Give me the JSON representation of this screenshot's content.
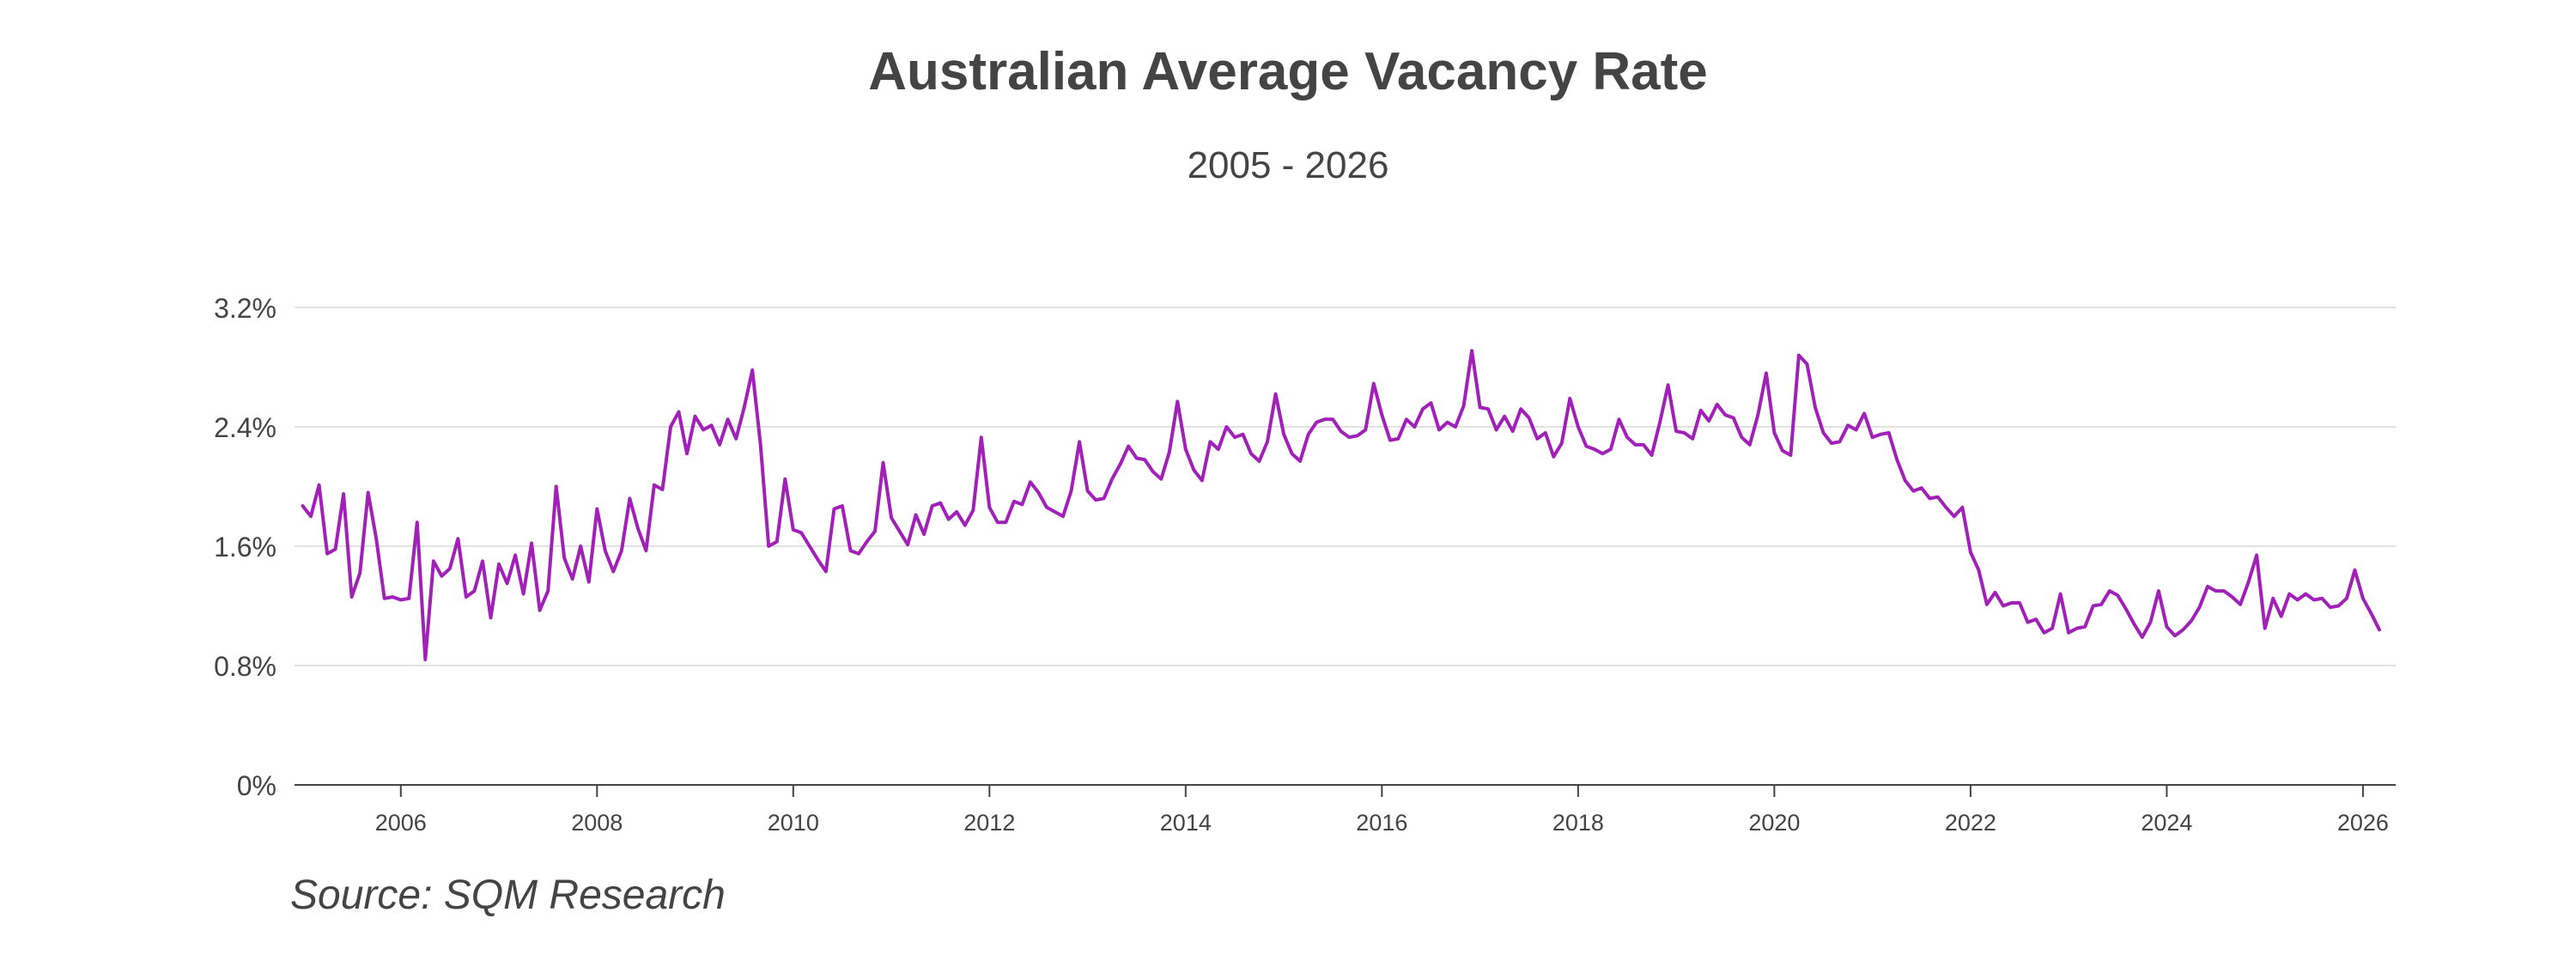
{
  "header": {
    "title": "Australian Average Vacancy Rate",
    "subtitle": "2005 - 2026"
  },
  "footer": {
    "source": "Source: SQM Research"
  },
  "colors": {
    "line": "#a020b8",
    "grid": "#e2e2e2",
    "axis": "#444444",
    "text": "#444444"
  },
  "chart_data": {
    "type": "line",
    "title": "Australian Average Vacancy Rate",
    "subtitle": "2005 - 2026",
    "xlabel": "",
    "ylabel": "",
    "x_range": [
      "2005-01",
      "2026-03"
    ],
    "xlim": [
      "2004-12",
      "2026-05"
    ],
    "ylim": [
      0,
      3.2
    ],
    "x_ticks": [
      "2006",
      "2008",
      "2010",
      "2012",
      "2014",
      "2016",
      "2018",
      "2020",
      "2022",
      "2024",
      "2026"
    ],
    "y_ticks": [
      "0%",
      "0.8%",
      "1.6%",
      "2.4%",
      "3.2%"
    ],
    "y_tick_values": [
      0,
      0.8,
      1.6,
      2.4,
      3.2
    ],
    "grid": "horizontal",
    "legend": "none",
    "series": [
      {
        "color": "#a020b8",
        "x_start": "2005-01",
        "x_interval": "1 month",
        "values": [
          1.87,
          1.8,
          2.01,
          1.55,
          1.58,
          1.95,
          1.26,
          1.42,
          1.96,
          1.65,
          1.25,
          1.26,
          1.24,
          1.25,
          1.76,
          0.84,
          1.5,
          1.4,
          1.45,
          1.65,
          1.26,
          1.3,
          1.5,
          1.12,
          1.48,
          1.35,
          1.54,
          1.28,
          1.62,
          1.17,
          1.3,
          2.0,
          1.52,
          1.38,
          1.6,
          1.36,
          1.85,
          1.57,
          1.43,
          1.57,
          1.92,
          1.72,
          1.57,
          2.01,
          1.98,
          2.4,
          2.5,
          2.22,
          2.47,
          2.38,
          2.41,
          2.28,
          2.45,
          2.32,
          2.53,
          2.78,
          2.28,
          1.6,
          1.63,
          2.05,
          1.71,
          1.69,
          1.6,
          1.51,
          1.43,
          1.85,
          1.87,
          1.57,
          1.55,
          1.63,
          1.7,
          2.16,
          1.79,
          1.7,
          1.61,
          1.81,
          1.68,
          1.87,
          1.89,
          1.78,
          1.83,
          1.74,
          1.84,
          2.33,
          1.86,
          1.76,
          1.76,
          1.9,
          1.88,
          2.03,
          1.96,
          1.86,
          1.83,
          1.8,
          1.97,
          2.3,
          1.97,
          1.91,
          1.92,
          2.05,
          2.15,
          2.27,
          2.19,
          2.18,
          2.1,
          2.05,
          2.23,
          2.57,
          2.25,
          2.11,
          2.04,
          2.3,
          2.25,
          2.4,
          2.33,
          2.35,
          2.22,
          2.17,
          2.3,
          2.62,
          2.35,
          2.22,
          2.17,
          2.35,
          2.43,
          2.45,
          2.45,
          2.37,
          2.33,
          2.34,
          2.38,
          2.69,
          2.48,
          2.31,
          2.32,
          2.45,
          2.4,
          2.52,
          2.56,
          2.38,
          2.43,
          2.4,
          2.54,
          2.91,
          2.53,
          2.52,
          2.38,
          2.47,
          2.37,
          2.52,
          2.46,
          2.32,
          2.36,
          2.2,
          2.29,
          2.59,
          2.4,
          2.27,
          2.25,
          2.22,
          2.25,
          2.45,
          2.33,
          2.28,
          2.28,
          2.21,
          2.43,
          2.68,
          2.37,
          2.36,
          2.32,
          2.51,
          2.44,
          2.55,
          2.48,
          2.46,
          2.33,
          2.28,
          2.48,
          2.76,
          2.36,
          2.24,
          2.21,
          2.88,
          2.82,
          2.53,
          2.36,
          2.29,
          2.3,
          2.41,
          2.38,
          2.49,
          2.33,
          2.35,
          2.36,
          2.18,
          2.04,
          1.97,
          1.99,
          1.92,
          1.93,
          1.86,
          1.8,
          1.86,
          1.56,
          1.44,
          1.21,
          1.29,
          1.2,
          1.22,
          1.22,
          1.09,
          1.11,
          1.02,
          1.05,
          1.28,
          1.02,
          1.05,
          1.06,
          1.2,
          1.21,
          1.3,
          1.27,
          1.18,
          1.08,
          0.99,
          1.09,
          1.3,
          1.06,
          1.0,
          1.04,
          1.1,
          1.19,
          1.33,
          1.3,
          1.3,
          1.26,
          1.21,
          1.36,
          1.54,
          1.05,
          1.25,
          1.13,
          1.28,
          1.24,
          1.28,
          1.24,
          1.25,
          1.19,
          1.2,
          1.25,
          1.44,
          1.25,
          1.15,
          1.04
        ]
      }
    ]
  }
}
